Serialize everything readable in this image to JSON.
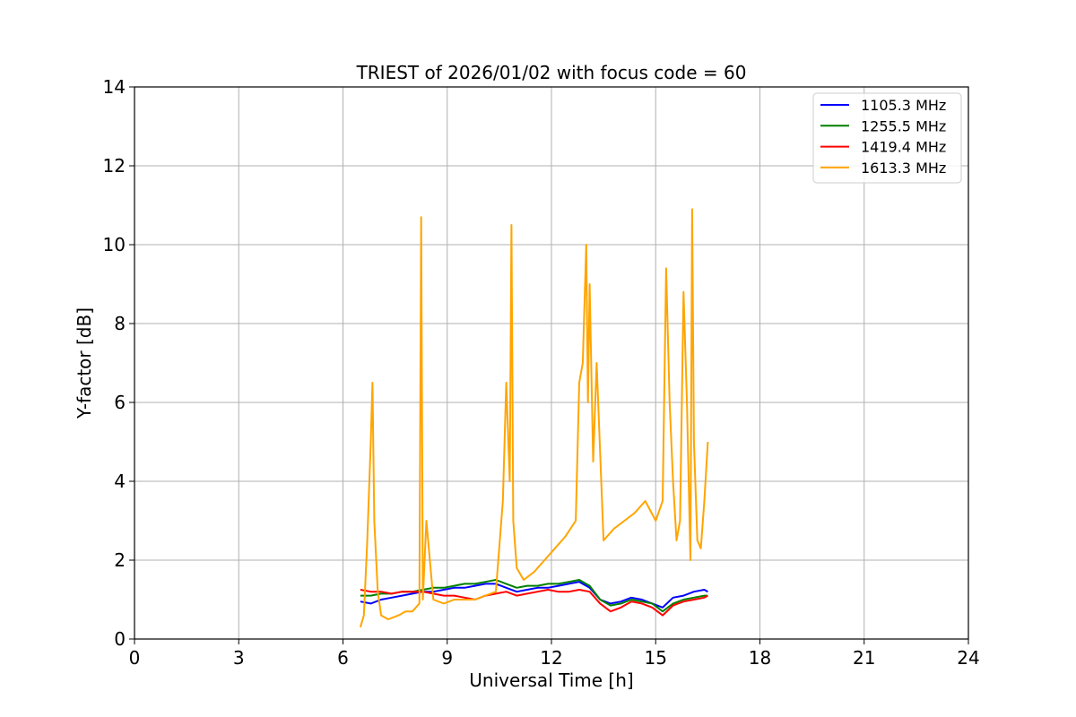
{
  "chart_data": {
    "type": "line",
    "title": "TRIEST of 2026/01/02 with focus code = 60",
    "xlabel": "Universal Time [h]",
    "ylabel": "Y-factor [dB]",
    "xlim": [
      0,
      24
    ],
    "ylim": [
      0,
      14
    ],
    "xticks": [
      0,
      3,
      6,
      9,
      12,
      15,
      18,
      21,
      24
    ],
    "yticks": [
      0,
      2,
      4,
      6,
      8,
      10,
      12,
      14
    ],
    "grid": true,
    "legend_position": "top-right",
    "series": [
      {
        "name": "1105.3 MHz",
        "color": "#0000ff",
        "x": [
          6.5,
          6.8,
          7.1,
          7.4,
          7.7,
          8.0,
          8.3,
          8.6,
          8.9,
          9.2,
          9.5,
          9.8,
          10.1,
          10.4,
          10.7,
          11.0,
          11.3,
          11.6,
          11.9,
          12.2,
          12.5,
          12.8,
          13.1,
          13.4,
          13.7,
          14.0,
          14.3,
          14.6,
          14.9,
          15.2,
          15.5,
          15.8,
          16.1,
          16.4,
          16.5
        ],
        "y": [
          0.95,
          0.9,
          1.0,
          1.05,
          1.1,
          1.15,
          1.2,
          1.2,
          1.25,
          1.3,
          1.3,
          1.35,
          1.4,
          1.4,
          1.3,
          1.2,
          1.25,
          1.3,
          1.3,
          1.35,
          1.4,
          1.45,
          1.3,
          1.0,
          0.9,
          0.95,
          1.05,
          1.0,
          0.9,
          0.8,
          1.05,
          1.1,
          1.2,
          1.25,
          1.2
        ]
      },
      {
        "name": "1255.5 MHz",
        "color": "#008000",
        "x": [
          6.5,
          6.8,
          7.1,
          7.4,
          7.7,
          8.0,
          8.3,
          8.6,
          8.9,
          9.2,
          9.5,
          9.8,
          10.1,
          10.4,
          10.7,
          11.0,
          11.3,
          11.6,
          11.9,
          12.2,
          12.5,
          12.8,
          13.1,
          13.4,
          13.7,
          14.0,
          14.3,
          14.6,
          14.9,
          15.2,
          15.5,
          15.8,
          16.1,
          16.4,
          16.5
        ],
        "y": [
          1.1,
          1.1,
          1.15,
          1.15,
          1.2,
          1.2,
          1.25,
          1.3,
          1.3,
          1.35,
          1.4,
          1.4,
          1.45,
          1.5,
          1.4,
          1.3,
          1.35,
          1.35,
          1.4,
          1.4,
          1.45,
          1.5,
          1.35,
          1.0,
          0.85,
          0.9,
          1.0,
          0.95,
          0.9,
          0.7,
          0.9,
          1.0,
          1.05,
          1.1,
          1.1
        ]
      },
      {
        "name": "1419.4 MHz",
        "color": "#ff0000",
        "x": [
          6.5,
          6.8,
          7.1,
          7.4,
          7.7,
          8.0,
          8.3,
          8.6,
          8.9,
          9.2,
          9.5,
          9.8,
          10.1,
          10.4,
          10.7,
          11.0,
          11.3,
          11.6,
          11.9,
          12.2,
          12.5,
          12.8,
          13.1,
          13.4,
          13.7,
          14.0,
          14.3,
          14.6,
          14.9,
          15.2,
          15.5,
          15.8,
          16.1,
          16.4,
          16.5
        ],
        "y": [
          1.25,
          1.2,
          1.2,
          1.15,
          1.2,
          1.2,
          1.2,
          1.15,
          1.1,
          1.1,
          1.05,
          1.0,
          1.1,
          1.15,
          1.2,
          1.1,
          1.15,
          1.2,
          1.25,
          1.2,
          1.2,
          1.25,
          1.2,
          0.9,
          0.7,
          0.8,
          0.95,
          0.9,
          0.8,
          0.6,
          0.85,
          0.95,
          1.0,
          1.05,
          1.1
        ]
      },
      {
        "name": "1613.3 MHz",
        "color": "#ffa500",
        "x": [
          6.5,
          6.6,
          6.7,
          6.8,
          6.85,
          6.9,
          7.0,
          7.1,
          7.3,
          7.6,
          7.8,
          8.0,
          8.2,
          8.25,
          8.3,
          8.4,
          8.6,
          8.9,
          9.2,
          9.5,
          9.8,
          10.1,
          10.4,
          10.6,
          10.7,
          10.8,
          10.85,
          10.9,
          11.0,
          11.2,
          11.5,
          11.8,
          12.1,
          12.4,
          12.7,
          12.8,
          12.9,
          13.0,
          13.05,
          13.1,
          13.2,
          13.3,
          13.5,
          13.8,
          14.1,
          14.4,
          14.7,
          15.0,
          15.2,
          15.3,
          15.4,
          15.5,
          15.6,
          15.7,
          15.8,
          15.9,
          16.0,
          16.05,
          16.1,
          16.2,
          16.3,
          16.4,
          16.5
        ],
        "y": [
          0.3,
          0.6,
          2.5,
          5.0,
          6.5,
          3.0,
          1.2,
          0.6,
          0.5,
          0.6,
          0.7,
          0.7,
          0.9,
          10.7,
          1.0,
          3.0,
          1.0,
          0.9,
          1.0,
          1.0,
          1.0,
          1.1,
          1.2,
          3.5,
          6.5,
          4.0,
          10.5,
          3.0,
          1.8,
          1.5,
          1.7,
          2.0,
          2.3,
          2.6,
          3.0,
          6.5,
          7.0,
          10.0,
          6.0,
          9.0,
          4.5,
          7.0,
          2.5,
          2.8,
          3.0,
          3.2,
          3.5,
          3.0,
          3.5,
          9.4,
          6.0,
          4.0,
          2.5,
          3.0,
          8.8,
          6.0,
          2.0,
          10.9,
          5.0,
          2.5,
          2.3,
          3.5,
          5.0
        ]
      }
    ]
  }
}
